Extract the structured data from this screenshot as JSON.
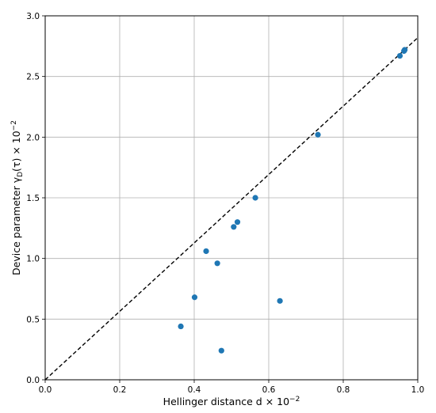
{
  "chart_data": {
    "type": "scatter",
    "title": "",
    "xlabel": "Hellinger distance  d × 10",
    "xlabel_exponent": "−2",
    "ylabel": "Device parameter  γ",
    "ylabel_subscript": "D",
    "ylabel_tail": "(τ) × 10",
    "ylabel_exponent": "−2",
    "xlim": [
      0.0,
      1.0
    ],
    "ylim": [
      0.0,
      3.0
    ],
    "x_ticks": [
      "0.0",
      "0.2",
      "0.4",
      "0.6",
      "0.8",
      "1.0"
    ],
    "x_tick_values": [
      0.0,
      0.2,
      0.4,
      0.6,
      0.8,
      1.0
    ],
    "y_ticks": [
      "0.0",
      "0.5",
      "1.0",
      "1.5",
      "2.0",
      "2.5",
      "3.0"
    ],
    "y_tick_values": [
      0.0,
      0.5,
      1.0,
      1.5,
      2.0,
      2.5,
      3.0
    ],
    "grid": true,
    "series": [
      {
        "points": [
          {
            "x": 0.364,
            "y": 0.44
          },
          {
            "x": 0.401,
            "y": 0.68
          },
          {
            "x": 0.432,
            "y": 1.06
          },
          {
            "x": 0.462,
            "y": 0.96
          },
          {
            "x": 0.473,
            "y": 0.24
          },
          {
            "x": 0.506,
            "y": 1.26
          },
          {
            "x": 0.516,
            "y": 1.3
          },
          {
            "x": 0.564,
            "y": 1.5
          },
          {
            "x": 0.63,
            "y": 0.65
          },
          {
            "x": 0.732,
            "y": 2.02
          },
          {
            "x": 0.952,
            "y": 2.67
          },
          {
            "x": 0.963,
            "y": 2.71
          },
          {
            "x": 0.965,
            "y": 2.72
          }
        ],
        "color": "#1f77b4"
      }
    ],
    "reference_line": {
      "style": "dashed",
      "color": "#000000",
      "from": {
        "x": 0.0,
        "y": 0.0
      },
      "to": {
        "x": 1.0,
        "y": 2.82
      }
    }
  }
}
